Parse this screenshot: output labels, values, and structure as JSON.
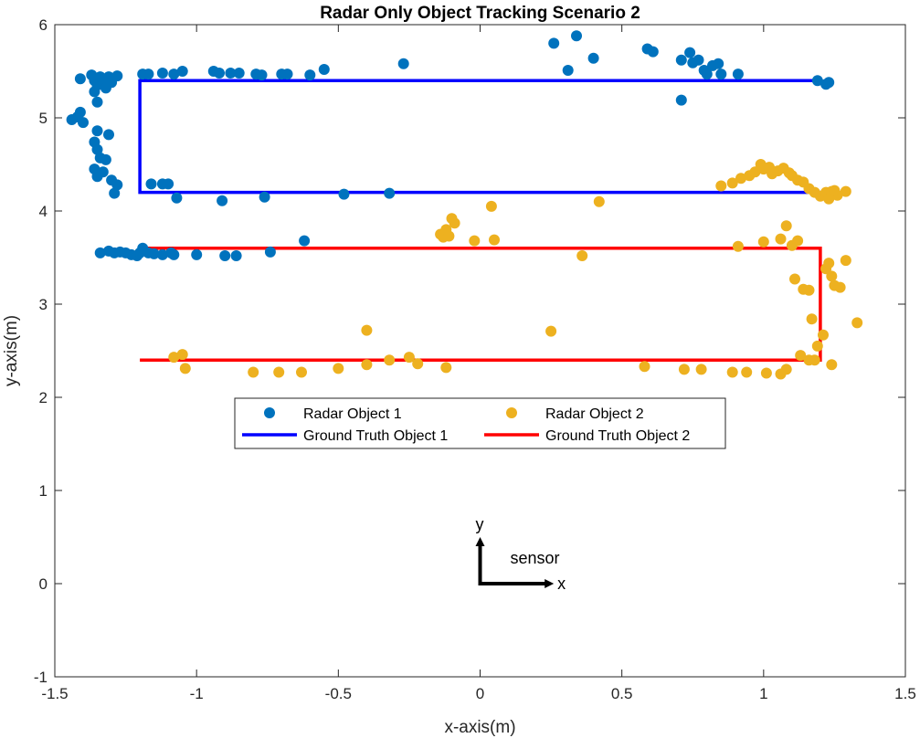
{
  "chart_data": {
    "type": "scatter",
    "title": "Radar Only Object Tracking Scenario 2",
    "xlabel": "x-axis(m)",
    "ylabel": "y-axis(m)",
    "xlim": [
      -1.5,
      1.5
    ],
    "ylim": [
      -1,
      6
    ],
    "xticks": [
      -1.5,
      -1,
      -0.5,
      0,
      0.5,
      1,
      1.5
    ],
    "xtick_labels": [
      "-1.5",
      "-1",
      "-0.5",
      "0",
      "0.5",
      "1",
      "1.5"
    ],
    "yticks": [
      -1,
      0,
      1,
      2,
      3,
      4,
      5,
      6
    ],
    "ytick_labels": [
      "-1",
      "0",
      "1",
      "2",
      "3",
      "4",
      "5",
      "6"
    ],
    "grid": false,
    "legend_position": "center",
    "series": [
      {
        "name": "Radar Object 1",
        "kind": "scatter",
        "color": "#0072BD",
        "points": [
          [
            -1.41,
            5.42
          ],
          [
            -1.37,
            5.46
          ],
          [
            -1.36,
            5.4
          ],
          [
            -1.35,
            5.35
          ],
          [
            -1.34,
            5.44
          ],
          [
            -1.33,
            5.39
          ],
          [
            -1.32,
            5.32
          ],
          [
            -1.31,
            5.44
          ],
          [
            -1.3,
            5.38
          ],
          [
            -1.28,
            5.45
          ],
          [
            -1.36,
            5.28
          ],
          [
            -1.35,
            5.17
          ],
          [
            -1.42,
            5.01
          ],
          [
            -1.44,
            4.98
          ],
          [
            -1.41,
            5.06
          ],
          [
            -1.4,
            4.95
          ],
          [
            -1.35,
            4.86
          ],
          [
            -1.31,
            4.82
          ],
          [
            -1.36,
            4.74
          ],
          [
            -1.35,
            4.66
          ],
          [
            -1.34,
            4.57
          ],
          [
            -1.32,
            4.55
          ],
          [
            -1.36,
            4.45
          ],
          [
            -1.33,
            4.42
          ],
          [
            -1.35,
            4.37
          ],
          [
            -1.3,
            4.33
          ],
          [
            -1.28,
            4.28
          ],
          [
            -1.29,
            4.19
          ],
          [
            -1.19,
            5.47
          ],
          [
            -1.17,
            5.47
          ],
          [
            -1.12,
            5.48
          ],
          [
            -1.08,
            5.47
          ],
          [
            -1.05,
            5.5
          ],
          [
            -0.94,
            5.5
          ],
          [
            -0.92,
            5.48
          ],
          [
            -0.88,
            5.48
          ],
          [
            -0.85,
            5.48
          ],
          [
            -0.79,
            5.47
          ],
          [
            -0.77,
            5.46
          ],
          [
            -0.7,
            5.47
          ],
          [
            -0.68,
            5.47
          ],
          [
            -0.6,
            5.46
          ],
          [
            -0.55,
            5.52
          ],
          [
            -0.27,
            5.58
          ],
          [
            0.26,
            5.8
          ],
          [
            0.31,
            5.51
          ],
          [
            0.34,
            5.88
          ],
          [
            0.4,
            5.64
          ],
          [
            0.59,
            5.74
          ],
          [
            0.61,
            5.71
          ],
          [
            0.71,
            5.62
          ],
          [
            0.74,
            5.7
          ],
          [
            0.75,
            5.59
          ],
          [
            0.77,
            5.62
          ],
          [
            0.79,
            5.51
          ],
          [
            0.8,
            5.47
          ],
          [
            0.82,
            5.56
          ],
          [
            0.84,
            5.58
          ],
          [
            0.85,
            5.47
          ],
          [
            0.91,
            5.47
          ],
          [
            0.71,
            5.19
          ],
          [
            1.19,
            5.4
          ],
          [
            1.22,
            5.36
          ],
          [
            1.23,
            5.38
          ],
          [
            -1.16,
            4.29
          ],
          [
            -1.12,
            4.29
          ],
          [
            -1.1,
            4.29
          ],
          [
            -1.07,
            4.14
          ],
          [
            -0.91,
            4.11
          ],
          [
            -0.76,
            4.15
          ],
          [
            -0.48,
            4.18
          ],
          [
            -0.32,
            4.19
          ],
          [
            -0.62,
            3.68
          ],
          [
            -1.34,
            3.55
          ],
          [
            -1.31,
            3.57
          ],
          [
            -1.29,
            3.55
          ],
          [
            -1.27,
            3.56
          ],
          [
            -1.25,
            3.55
          ],
          [
            -1.23,
            3.53
          ],
          [
            -1.21,
            3.52
          ],
          [
            -1.2,
            3.55
          ],
          [
            -1.19,
            3.6
          ],
          [
            -1.17,
            3.55
          ],
          [
            -1.15,
            3.54
          ],
          [
            -1.12,
            3.53
          ],
          [
            -1.09,
            3.55
          ],
          [
            -1.08,
            3.53
          ],
          [
            -1.0,
            3.53
          ],
          [
            -0.9,
            3.52
          ],
          [
            -0.86,
            3.52
          ],
          [
            -0.74,
            3.56
          ]
        ]
      },
      {
        "name": "Radar Object 2",
        "kind": "scatter",
        "color": "#EDB120",
        "points": [
          [
            -1.08,
            2.43
          ],
          [
            -1.05,
            2.46
          ],
          [
            -1.04,
            2.31
          ],
          [
            -0.8,
            2.27
          ],
          [
            -0.71,
            2.27
          ],
          [
            -0.63,
            2.27
          ],
          [
            -0.5,
            2.31
          ],
          [
            -0.4,
            2.35
          ],
          [
            -0.32,
            2.4
          ],
          [
            -0.25,
            2.43
          ],
          [
            -0.22,
            2.36
          ],
          [
            -0.12,
            2.32
          ],
          [
            0.25,
            2.71
          ],
          [
            0.58,
            2.33
          ],
          [
            0.72,
            2.3
          ],
          [
            0.78,
            2.3
          ],
          [
            0.89,
            2.27
          ],
          [
            0.94,
            2.27
          ],
          [
            1.01,
            2.26
          ],
          [
            1.06,
            2.25
          ],
          [
            1.08,
            2.3
          ],
          [
            1.13,
            2.45
          ],
          [
            1.16,
            2.4
          ],
          [
            1.18,
            2.4
          ],
          [
            1.19,
            2.55
          ],
          [
            1.24,
            2.35
          ],
          [
            -0.4,
            2.72
          ],
          [
            -0.14,
            3.75
          ],
          [
            -0.13,
            3.72
          ],
          [
            -0.12,
            3.8
          ],
          [
            -0.11,
            3.73
          ],
          [
            -0.1,
            3.92
          ],
          [
            -0.09,
            3.87
          ],
          [
            -0.02,
            3.68
          ],
          [
            0.05,
            3.69
          ],
          [
            0.04,
            4.05
          ],
          [
            0.42,
            4.1
          ],
          [
            0.36,
            3.52
          ],
          [
            0.91,
            3.62
          ],
          [
            1.0,
            3.67
          ],
          [
            1.06,
            3.7
          ],
          [
            1.08,
            3.84
          ],
          [
            1.1,
            3.63
          ],
          [
            1.12,
            3.68
          ],
          [
            1.11,
            3.27
          ],
          [
            1.14,
            3.16
          ],
          [
            1.16,
            3.15
          ],
          [
            1.17,
            2.84
          ],
          [
            1.22,
            3.38
          ],
          [
            1.23,
            3.44
          ],
          [
            1.24,
            3.3
          ],
          [
            1.25,
            3.2
          ],
          [
            1.27,
            3.18
          ],
          [
            1.29,
            3.47
          ],
          [
            1.33,
            2.8
          ],
          [
            1.21,
            2.67
          ],
          [
            0.85,
            4.27
          ],
          [
            0.89,
            4.3
          ],
          [
            0.92,
            4.35
          ],
          [
            0.95,
            4.38
          ],
          [
            0.97,
            4.42
          ],
          [
            0.99,
            4.5
          ],
          [
            1.0,
            4.45
          ],
          [
            1.02,
            4.47
          ],
          [
            1.03,
            4.4
          ],
          [
            1.05,
            4.43
          ],
          [
            1.07,
            4.46
          ],
          [
            1.09,
            4.41
          ],
          [
            1.1,
            4.38
          ],
          [
            1.12,
            4.33
          ],
          [
            1.14,
            4.31
          ],
          [
            1.16,
            4.24
          ],
          [
            1.18,
            4.2
          ],
          [
            1.2,
            4.16
          ],
          [
            1.22,
            4.2
          ],
          [
            1.24,
            4.21
          ],
          [
            1.26,
            4.17
          ],
          [
            1.29,
            4.21
          ],
          [
            1.23,
            4.13
          ],
          [
            1.25,
            4.22
          ]
        ]
      },
      {
        "name": "Ground Truth Object 1",
        "kind": "line",
        "color": "#0000FF",
        "points": [
          [
            1.2,
            5.4
          ],
          [
            -1.2,
            5.4
          ],
          [
            -1.2,
            4.2
          ],
          [
            1.2,
            4.2
          ]
        ]
      },
      {
        "name": "Ground Truth Object 2",
        "kind": "line",
        "color": "#FF0000",
        "points": [
          [
            -1.2,
            3.6
          ],
          [
            1.2,
            3.6
          ],
          [
            1.2,
            2.4
          ],
          [
            -1.2,
            2.4
          ]
        ]
      }
    ],
    "annotations": {
      "sensor_label": "sensor",
      "x_arrow_label": "x",
      "y_arrow_label": "y",
      "origin": [
        0,
        0
      ],
      "x_arrow_end": [
        0.26,
        0
      ],
      "y_arrow_end": [
        0,
        0.5
      ]
    }
  }
}
